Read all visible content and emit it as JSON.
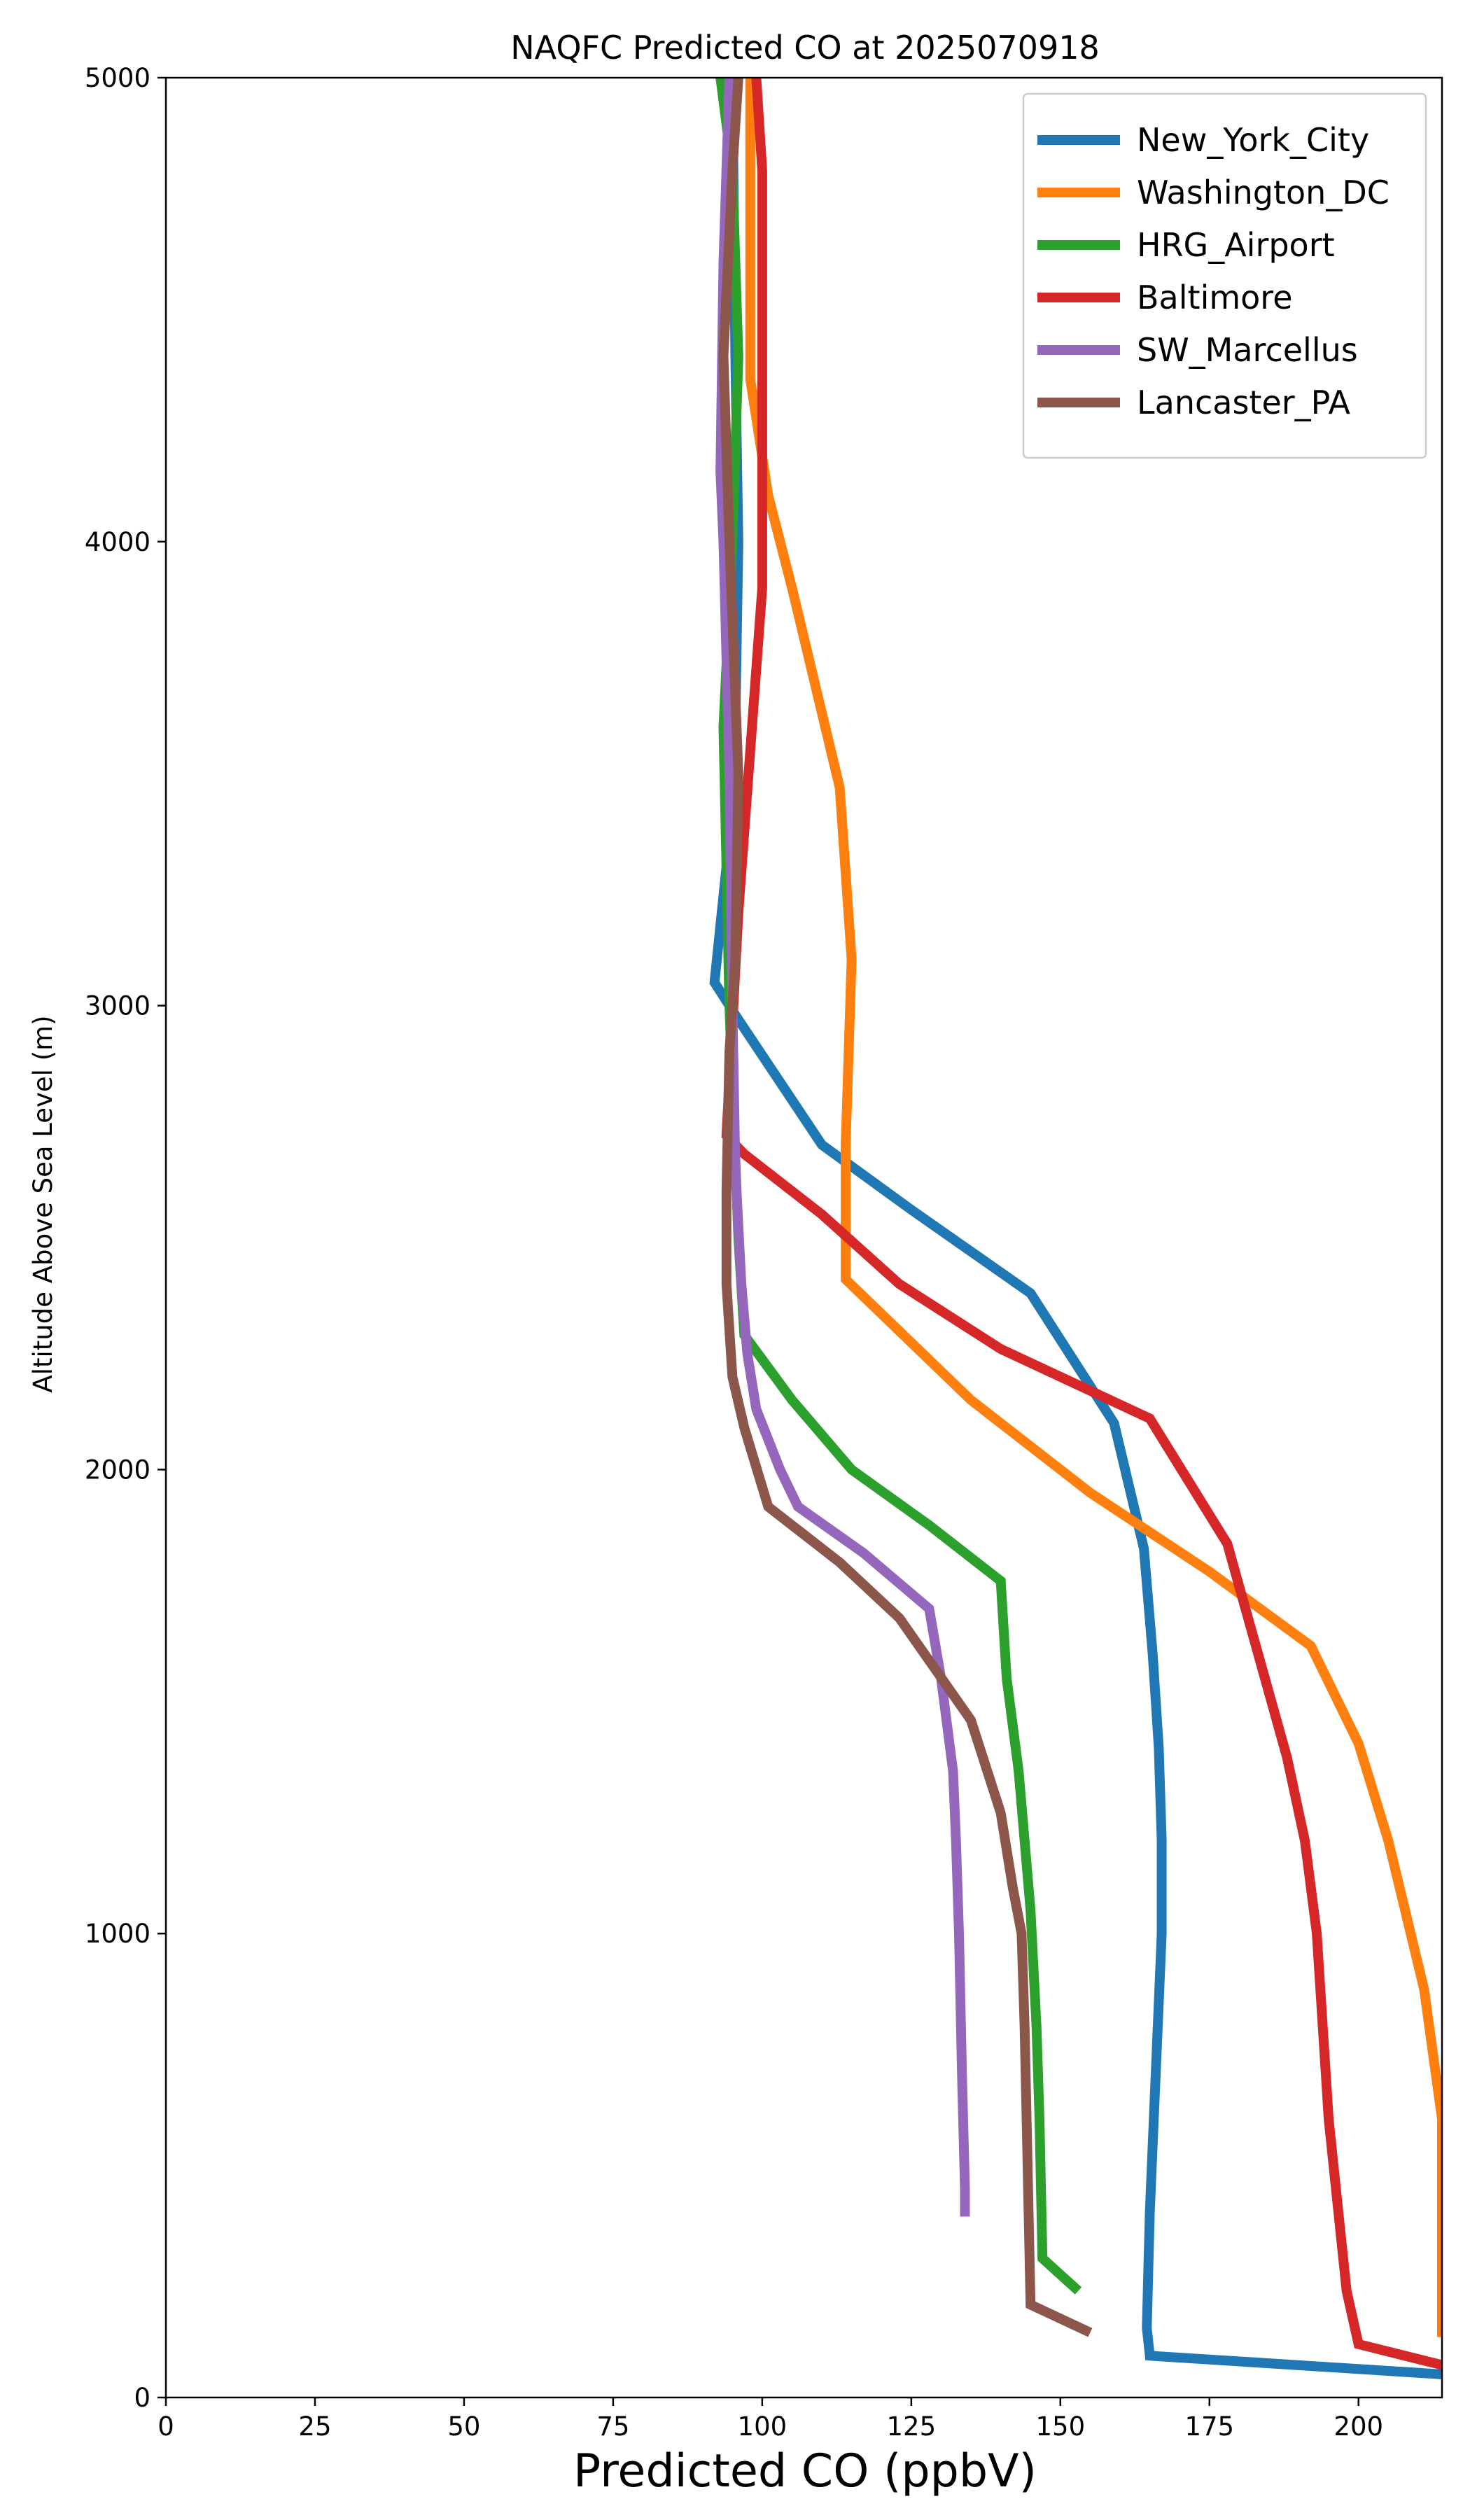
{
  "chart_data": {
    "type": "line",
    "title": "NAQFC Predicted CO at 2025070918",
    "xlabel": "Predicted CO (ppbV)",
    "ylabel": "Altitude Above Sea Level (m)",
    "xlim": [
      0,
      214
    ],
    "ylim": [
      0,
      5000
    ],
    "xticks": [
      0,
      25,
      50,
      75,
      100,
      125,
      150,
      175,
      200
    ],
    "yticks": [
      0,
      1000,
      2000,
      3000,
      4000,
      5000
    ],
    "grid": false,
    "legend_position": "top-right",
    "series": [
      {
        "name": "New_York_City",
        "color": "#1f77b4",
        "points": [
          [
            214,
            50
          ],
          [
            165,
            90
          ],
          [
            164.5,
            150
          ],
          [
            165,
            400
          ],
          [
            166,
            700
          ],
          [
            167,
            1000
          ],
          [
            167,
            1200
          ],
          [
            166.5,
            1400
          ],
          [
            165.5,
            1600
          ],
          [
            164,
            1830
          ],
          [
            159,
            2100
          ],
          [
            145,
            2380
          ],
          [
            125,
            2560
          ],
          [
            110,
            2700
          ],
          [
            96,
            2970
          ],
          [
            92,
            3050
          ],
          [
            94,
            3300
          ],
          [
            95.5,
            3600
          ],
          [
            96,
            4000
          ],
          [
            95.5,
            4400
          ],
          [
            95,
            5000
          ]
        ]
      },
      {
        "name": "Washington_DC",
        "color": "#ff7f0e",
        "points": [
          [
            214,
            130
          ],
          [
            214,
            400
          ],
          [
            214,
            600
          ],
          [
            211,
            880
          ],
          [
            205,
            1200
          ],
          [
            200,
            1410
          ],
          [
            192,
            1620
          ],
          [
            175,
            1780
          ],
          [
            155,
            1950
          ],
          [
            135,
            2150
          ],
          [
            114,
            2410
          ],
          [
            114,
            2700
          ],
          [
            115,
            3100
          ],
          [
            113,
            3470
          ],
          [
            105,
            3900
          ],
          [
            101,
            4100
          ],
          [
            98,
            4350
          ],
          [
            98,
            4700
          ],
          [
            98,
            5000
          ]
        ]
      },
      {
        "name": "HRG_Airport",
        "color": "#2ca02c",
        "points": [
          [
            153,
            230
          ],
          [
            147,
            300
          ],
          [
            146.5,
            600
          ],
          [
            146,
            800
          ],
          [
            145,
            1050
          ],
          [
            144,
            1200
          ],
          [
            143,
            1350
          ],
          [
            141,
            1550
          ],
          [
            140,
            1760
          ],
          [
            128,
            1880
          ],
          [
            115,
            2000
          ],
          [
            105,
            2150
          ],
          [
            97,
            2290
          ],
          [
            96,
            2500
          ],
          [
            94.5,
            3000
          ],
          [
            93.5,
            3600
          ],
          [
            95,
            4000
          ],
          [
            96,
            4400
          ],
          [
            95,
            4800
          ],
          [
            93,
            5000
          ]
        ]
      },
      {
        "name": "Baltimore",
        "color": "#d62728",
        "points": [
          [
            214,
            70
          ],
          [
            200,
            115
          ],
          [
            198,
            230
          ],
          [
            195,
            600
          ],
          [
            193,
            1000
          ],
          [
            191,
            1200
          ],
          [
            188,
            1380
          ],
          [
            178,
            1840
          ],
          [
            165,
            2110
          ],
          [
            140,
            2260
          ],
          [
            123,
            2400
          ],
          [
            110,
            2550
          ],
          [
            97,
            2680
          ],
          [
            94,
            2720
          ],
          [
            96,
            3200
          ],
          [
            98,
            3550
          ],
          [
            100,
            3900
          ],
          [
            100,
            4300
          ],
          [
            100,
            4800
          ],
          [
            99,
            5000
          ]
        ]
      },
      {
        "name": "SW_Marcellus",
        "color": "#9467bd",
        "points": [
          [
            134,
            390
          ],
          [
            134,
            450
          ],
          [
            133.5,
            700
          ],
          [
            133,
            1000
          ],
          [
            132.5,
            1200
          ],
          [
            132,
            1350
          ],
          [
            130,
            1550
          ],
          [
            128,
            1700
          ],
          [
            117,
            1820
          ],
          [
            106,
            1920
          ],
          [
            103,
            2000
          ],
          [
            99,
            2130
          ],
          [
            97.5,
            2250
          ],
          [
            96.5,
            2400
          ],
          [
            95.5,
            2650
          ],
          [
            95,
            3000
          ],
          [
            94.5,
            3500
          ],
          [
            93.5,
            4000
          ],
          [
            93,
            4150
          ],
          [
            93.5,
            4600
          ],
          [
            94.5,
            5000
          ]
        ]
      },
      {
        "name": "Lancaster_PA",
        "color": "#8c564b",
        "points": [
          [
            155,
            140
          ],
          [
            145,
            200
          ],
          [
            144.5,
            500
          ],
          [
            144,
            800
          ],
          [
            143.5,
            1000
          ],
          [
            142,
            1100
          ],
          [
            140,
            1260
          ],
          [
            135,
            1460
          ],
          [
            123,
            1680
          ],
          [
            113,
            1800
          ],
          [
            101,
            1920
          ],
          [
            97,
            2090
          ],
          [
            95,
            2200
          ],
          [
            94,
            2400
          ],
          [
            94,
            2600
          ],
          [
            94.5,
            2900
          ],
          [
            95.5,
            3100
          ],
          [
            96,
            3500
          ],
          [
            94.5,
            4000
          ],
          [
            93.5,
            4400
          ],
          [
            95,
            4800
          ],
          [
            96,
            5000
          ]
        ]
      }
    ]
  }
}
